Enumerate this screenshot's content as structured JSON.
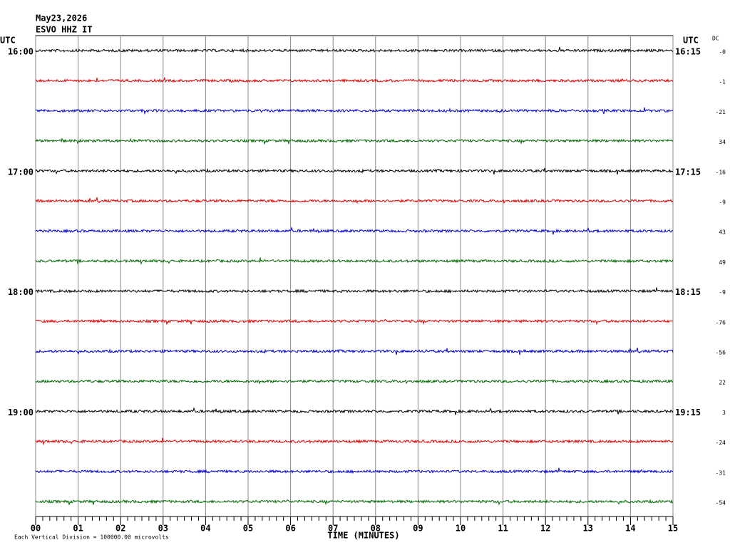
{
  "chart_data": {
    "type": "helicorder",
    "title": "May23,2026",
    "subtitle": "ESVO HHZ IT",
    "left_axis_label": "UTC",
    "right_axis_label": "UTC",
    "dc_label": "DC",
    "x_label": "TIME (MINUTES)",
    "footnote": "Each Vertical Division = 100000.00 microvolts",
    "xlim": [
      0,
      15
    ],
    "xticks": [
      {
        "value": 0,
        "label": "00"
      },
      {
        "value": 1,
        "label": "01"
      },
      {
        "value": 2,
        "label": "02"
      },
      {
        "value": 3,
        "label": "03"
      },
      {
        "value": 4,
        "label": "04"
      },
      {
        "value": 5,
        "label": "05"
      },
      {
        "value": 6,
        "label": "06"
      },
      {
        "value": 7,
        "label": "07"
      },
      {
        "value": 8,
        "label": "08"
      },
      {
        "value": 9,
        "label": "09"
      },
      10,
      11,
      12,
      13,
      14,
      15
    ],
    "grid": true,
    "colors": [
      "#000000",
      "#dd0000",
      "#0000cc",
      "#006600"
    ],
    "left_labels": [
      "16:00",
      null,
      null,
      null,
      "17:00",
      null,
      null,
      null,
      "18:00",
      null,
      null,
      null,
      "19:00",
      null,
      null,
      null
    ],
    "right_labels": [
      "16:15",
      null,
      null,
      null,
      "17:15",
      null,
      null,
      null,
      "18:15",
      null,
      null,
      null,
      "19:15",
      null,
      null,
      null
    ],
    "dc": [
      "-0",
      "-1",
      "-21",
      "34",
      "-16",
      "-9",
      "43",
      "49",
      "-9",
      "-76",
      "-56",
      "22",
      "3",
      "-24",
      "-31",
      "-54"
    ]
  }
}
